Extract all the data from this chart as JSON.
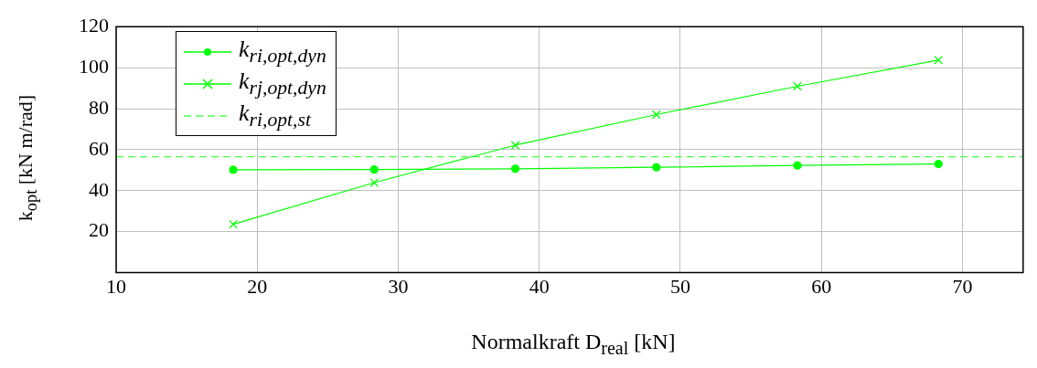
{
  "chart_data": {
    "type": "line",
    "xlabel": "Normalkraft D$_{real}$ [kN]",
    "ylabel": "k$_{opt}$ [kN m/rad]",
    "x": [
      18.3,
      28.3,
      38.3,
      48.3,
      58.3,
      68.3
    ],
    "series": [
      {
        "name": "k$_{ri,opt,dyn}$",
        "color": "#00ff00",
        "marker": "circle",
        "values": [
          50.2,
          50.3,
          50.7,
          51.4,
          52.3,
          53.0
        ]
      },
      {
        "name": "k$_{rj,opt,dyn}$",
        "color": "#00ff00",
        "marker": "cross",
        "values": [
          23.6,
          43.9,
          62.2,
          77.1,
          90.9,
          103.7
        ]
      }
    ],
    "ref_lines": [
      {
        "axis": "y",
        "value": 56.6,
        "label": "k$_{ri,opt,st}$",
        "color": "#4dff4d",
        "line_style": "dashed"
      }
    ],
    "xlim": [
      10,
      74.3
    ],
    "xticks": [
      10,
      20,
      30,
      40,
      50,
      60,
      70
    ],
    "ylim": [
      0,
      120
    ],
    "yticks": [
      20,
      40,
      60,
      80,
      100,
      120
    ],
    "grid": true,
    "legend": "top left"
  }
}
